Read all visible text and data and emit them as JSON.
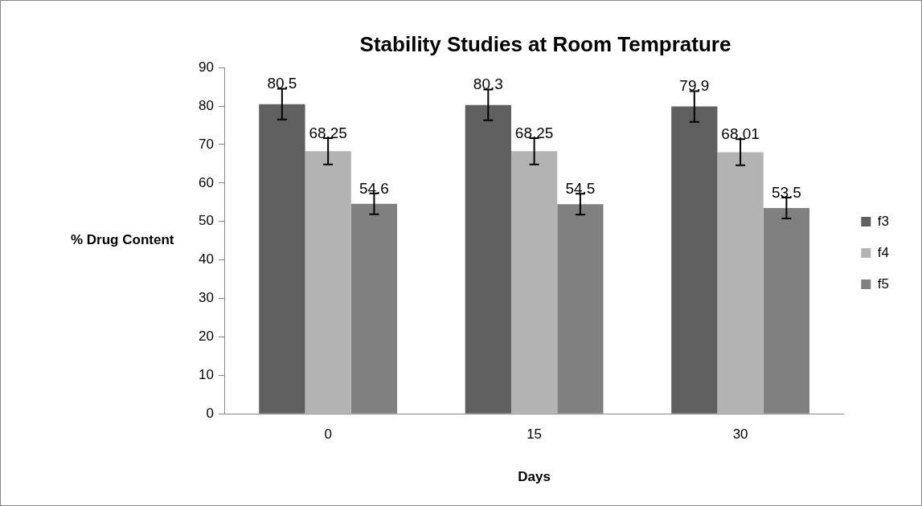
{
  "chart_data": {
    "type": "bar",
    "title": "Stability Studies at Room Temprature",
    "xlabel": "Days",
    "ylabel": "% Drug Content",
    "categories": [
      "0",
      "15",
      "30"
    ],
    "series": [
      {
        "name": "f3",
        "color": "#5f5f5f",
        "values": [
          80.5,
          80.3,
          79.9
        ],
        "errors": [
          4.0,
          4.0,
          4.0
        ]
      },
      {
        "name": "f4",
        "color": "#b3b3b3",
        "values": [
          68.25,
          68.25,
          68.01
        ],
        "errors": [
          3.4,
          3.4,
          3.4
        ]
      },
      {
        "name": "f5",
        "color": "#808080",
        "values": [
          54.6,
          54.5,
          53.5
        ],
        "errors": [
          2.7,
          2.7,
          2.7
        ]
      }
    ],
    "ylim": [
      0,
      90
    ],
    "yticks": [
      0,
      10,
      20,
      30,
      40,
      50,
      60,
      70,
      80,
      90
    ],
    "grid": false,
    "legend": "right",
    "data_labels": true
  }
}
